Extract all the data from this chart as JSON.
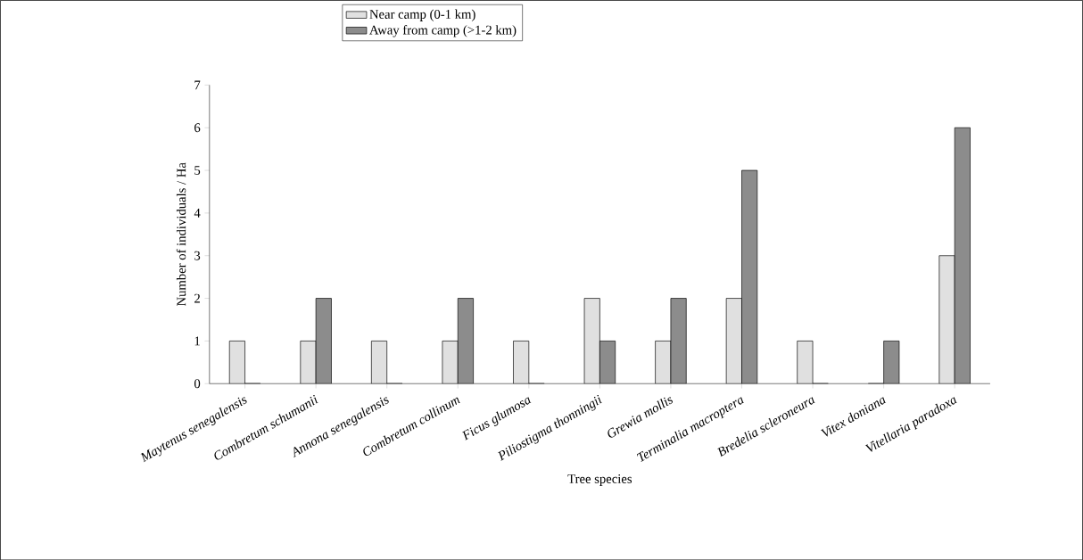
{
  "chart_data": {
    "type": "bar",
    "xlabel": "Tree species",
    "ylabel": "Number of individuals / Ha",
    "categories": [
      "*Maytenus senegalensis*",
      "*Combretum schumanii*",
      "*Annona senegalensis*",
      "*Combretum collinum*",
      "*Ficus glumosa*",
      "*Piliostigma thonningii*",
      "*Grewia mollis*",
      "*Terminalia macroptera*",
      "*Bredelia scleroneura*",
      "*Vitex doniana*",
      "*Vitellaria paradoxa*"
    ],
    "series": [
      {
        "name": "Near camp (0-1 km)",
        "color": "#e0e0e0",
        "values": [
          1,
          1,
          1,
          1,
          1,
          2,
          1,
          2,
          1,
          0,
          3
        ]
      },
      {
        "name": "Away from camp (>1-2 km)",
        "color": "#8c8c8c",
        "values": [
          0,
          2,
          0,
          2,
          0,
          1,
          2,
          5,
          0,
          1,
          6
        ]
      }
    ],
    "ylim": [
      0,
      7
    ],
    "yticks": [
      0,
      1,
      2,
      3,
      4,
      5,
      6,
      7
    ],
    "legend": "top"
  }
}
